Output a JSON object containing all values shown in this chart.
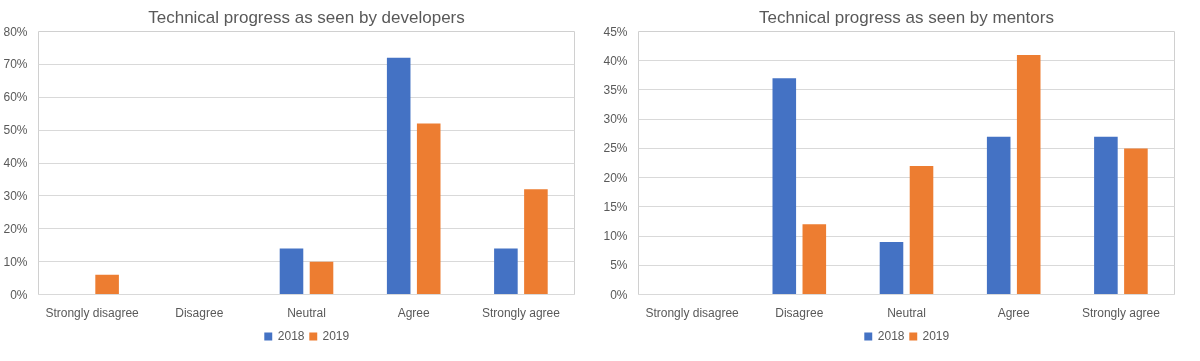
{
  "chart_data": [
    {
      "type": "bar",
      "title": "Technical progress as seen by developers",
      "categories": [
        "Strongly disagree",
        "Disagree",
        "Neutral",
        "Agree",
        "Strongly agree"
      ],
      "series": [
        {
          "name": "2018",
          "color": "#4472c4",
          "values": [
            0,
            0,
            14,
            72,
            14
          ]
        },
        {
          "name": "2019",
          "color": "#ed7d31",
          "values": [
            6,
            0,
            10,
            52,
            32
          ]
        }
      ],
      "ylim": [
        0,
        80
      ],
      "yticks": [
        {
          "value": 0,
          "label": "0%"
        },
        {
          "value": 10,
          "label": "10%"
        },
        {
          "value": 20,
          "label": "20%"
        },
        {
          "value": 30,
          "label": "30%"
        },
        {
          "value": 40,
          "label": "40%"
        },
        {
          "value": 50,
          "label": "50%"
        },
        {
          "value": 60,
          "label": "60%"
        },
        {
          "value": 70,
          "label": "70%"
        },
        {
          "value": 80,
          "label": "80%"
        }
      ],
      "grid": "y",
      "legend": "bottom"
    },
    {
      "type": "bar",
      "title": "Technical progress as seen by mentors",
      "categories": [
        "Strongly disagree",
        "Disagree",
        "Neutral",
        "Agree",
        "Strongly agree"
      ],
      "series": [
        {
          "name": "2018",
          "color": "#4472c4",
          "values": [
            0,
            37,
            9,
            27,
            27
          ]
        },
        {
          "name": "2019",
          "color": "#ed7d31",
          "values": [
            0,
            12,
            22,
            41,
            25
          ]
        }
      ],
      "ylim": [
        0,
        45
      ],
      "yticks": [
        {
          "value": 0,
          "label": "0%"
        },
        {
          "value": 5,
          "label": "5%"
        },
        {
          "value": 10,
          "label": "10%"
        },
        {
          "value": 15,
          "label": "15%"
        },
        {
          "value": 20,
          "label": "20%"
        },
        {
          "value": 25,
          "label": "25%"
        },
        {
          "value": 30,
          "label": "30%"
        },
        {
          "value": 35,
          "label": "35%"
        },
        {
          "value": 40,
          "label": "40%"
        },
        {
          "value": 45,
          "label": "45%"
        }
      ],
      "grid": "y",
      "legend": "bottom"
    }
  ]
}
